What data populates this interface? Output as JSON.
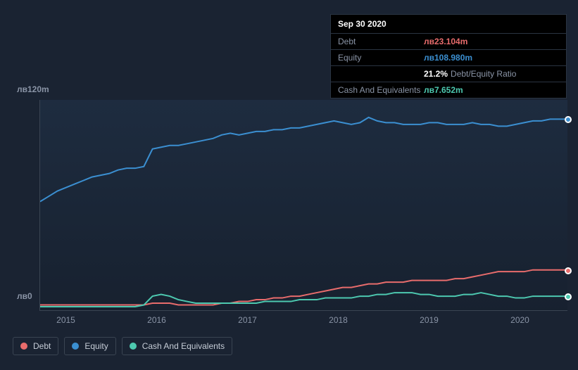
{
  "tooltip": {
    "date": "Sep 30 2020",
    "rows": [
      {
        "label": "Debt",
        "value": "лв23.104m",
        "class": "debt"
      },
      {
        "label": "Equity",
        "value": "лв108.980m",
        "class": "equity"
      },
      {
        "label": "",
        "value": "21.2%",
        "suffix": "Debt/Equity Ratio",
        "class": "ratio"
      },
      {
        "label": "Cash And Equivalents",
        "value": "лв7.652m",
        "class": "cash"
      }
    ]
  },
  "chart": {
    "type": "line",
    "y_axis": {
      "max_label": "лв120m",
      "min_label": "лв0",
      "min": 0,
      "max": 120
    },
    "x_axis": {
      "labels": [
        "2015",
        "2016",
        "2017",
        "2018",
        "2019",
        "2020"
      ]
    },
    "background_color": "#1a2332",
    "grid_color": "#3a4452",
    "series": [
      {
        "name": "Equity",
        "color": "#3b8fd1",
        "line_width": 2,
        "values": [
          62,
          65,
          68,
          70,
          72,
          74,
          76,
          77,
          78,
          80,
          81,
          81,
          82,
          92,
          93,
          94,
          94,
          95,
          96,
          97,
          98,
          100,
          101,
          100,
          101,
          102,
          102,
          103,
          103,
          104,
          104,
          105,
          106,
          107,
          108,
          107,
          106,
          107,
          110,
          108,
          107,
          107,
          106,
          106,
          106,
          107,
          107,
          106,
          106,
          106,
          107,
          106,
          106,
          105,
          105,
          106,
          107,
          108,
          108,
          109,
          109,
          109
        ]
      },
      {
        "name": "Debt",
        "color": "#e86c6c",
        "line_width": 2,
        "values": [
          3,
          3,
          3,
          3,
          3,
          3,
          3,
          3,
          3,
          3,
          3,
          3,
          3,
          4,
          4,
          4,
          3,
          3,
          3,
          3,
          3,
          4,
          4,
          5,
          5,
          6,
          6,
          7,
          7,
          8,
          8,
          9,
          10,
          11,
          12,
          13,
          13,
          14,
          15,
          15,
          16,
          16,
          16,
          17,
          17,
          17,
          17,
          17,
          18,
          18,
          19,
          20,
          21,
          22,
          22,
          22,
          22,
          23,
          23,
          23,
          23,
          23
        ]
      },
      {
        "name": "Cash And Equivalents",
        "color": "#4dc9b0",
        "line_width": 2,
        "values": [
          2,
          2,
          2,
          2,
          2,
          2,
          2,
          2,
          2,
          2,
          2,
          2,
          3,
          8,
          9,
          8,
          6,
          5,
          4,
          4,
          4,
          4,
          4,
          4,
          4,
          4,
          5,
          5,
          5,
          5,
          6,
          6,
          6,
          7,
          7,
          7,
          7,
          8,
          8,
          9,
          9,
          10,
          10,
          10,
          9,
          9,
          8,
          8,
          8,
          9,
          9,
          10,
          9,
          8,
          8,
          7,
          7,
          8,
          8,
          8,
          8,
          8
        ]
      }
    ],
    "end_markers": [
      {
        "color": "#3b8fd1",
        "yval": 109
      },
      {
        "color": "#e86c6c",
        "yval": 23
      },
      {
        "color": "#4dc9b0",
        "yval": 8
      }
    ]
  },
  "legend": {
    "items": [
      {
        "label": "Debt",
        "color": "#e86c6c"
      },
      {
        "label": "Equity",
        "color": "#3b8fd1"
      },
      {
        "label": "Cash And Equivalents",
        "color": "#4dc9b0"
      }
    ]
  }
}
